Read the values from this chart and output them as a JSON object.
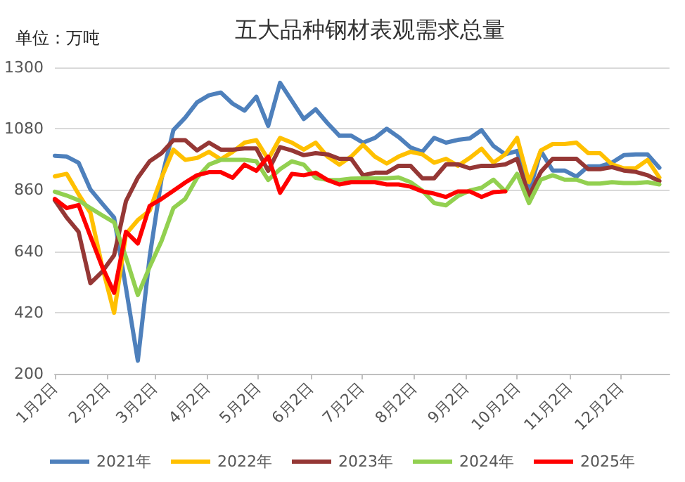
{
  "chart_data": {
    "type": "line",
    "title": "五大品种钢材表观需求总量",
    "annotations": [
      "单位：万吨"
    ],
    "x": [
      "--01-02",
      "--01-09",
      "--01-16",
      "--01-23",
      "--01-30",
      "--02-06",
      "--02-13",
      "--02-20",
      "--02-27",
      "--03-06",
      "--03-13",
      "--03-20",
      "--03-27",
      "--04-03",
      "--04-10",
      "--04-17",
      "--04-24",
      "--05-01",
      "--05-08",
      "--05-15",
      "--05-22",
      "--05-29",
      "--06-05",
      "--06-12",
      "--06-19",
      "--06-26",
      "--07-03",
      "--07-10",
      "--07-17",
      "--07-24",
      "--07-31",
      "--08-07",
      "--08-14",
      "--08-21",
      "--08-28",
      "--09-04",
      "--09-11",
      "--09-18",
      "--09-25",
      "--10-02",
      "--10-09",
      "--10-16",
      "--10-23",
      "--10-30",
      "--11-06",
      "--11-13",
      "--11-20",
      "--11-27",
      "--12-04",
      "--12-11",
      "--12-18",
      "--12-25"
    ],
    "xlim": [
      "--01-02",
      "--12-31"
    ],
    "xticks": [
      {
        "value": "--01-02",
        "label": "1月2日"
      },
      {
        "value": "--02-02",
        "label": "2月2日"
      },
      {
        "value": "--03-02",
        "label": "3月2日"
      },
      {
        "value": "--04-02",
        "label": "4月2日"
      },
      {
        "value": "--05-02",
        "label": "5月2日"
      },
      {
        "value": "--06-02",
        "label": "6月2日"
      },
      {
        "value": "--07-02",
        "label": "7月2日"
      },
      {
        "value": "--08-02",
        "label": "8月2日"
      },
      {
        "value": "--09-02",
        "label": "9月2日"
      },
      {
        "value": "--10-02",
        "label": "10月2日"
      },
      {
        "value": "--11-02",
        "label": "11月2日"
      },
      {
        "value": "--12-02",
        "label": "12月2日"
      }
    ],
    "ylim": [
      200,
      1300
    ],
    "yticks": [
      200,
      420,
      640,
      860,
      1080,
      1300
    ],
    "grid": "y",
    "legend": "bottom",
    "marker": "none",
    "line_style": "solid",
    "series": [
      {
        "name": "2021年",
        "color": "#4e80bc",
        "values": [
          983,
          980,
          958,
          862,
          811,
          761,
          508,
          247,
          620,
          900,
          1075,
          1120,
          1175,
          1200,
          1210,
          1170,
          1145,
          1195,
          1090,
          1245,
          1180,
          1115,
          1150,
          1100,
          1055,
          1055,
          1030,
          1047,
          1080,
          1050,
          1013,
          997,
          1047,
          1030,
          1040,
          1045,
          1075,
          1018,
          988,
          1000,
          850,
          1000,
          930,
          930,
          908,
          945,
          945,
          958,
          985,
          988,
          988,
          940
        ]
      },
      {
        "name": "2022年",
        "color": "#ffc000",
        "values": [
          909,
          918,
          845,
          778,
          584,
          419,
          702,
          752,
          786,
          904,
          1005,
          968,
          975,
          997,
          970,
          997,
          1030,
          1039,
          970,
          1047,
          1030,
          1005,
          1030,
          980,
          951,
          980,
          1022,
          980,
          955,
          980,
          997,
          988,
          958,
          972,
          947,
          975,
          1008,
          958,
          988,
          1047,
          888,
          1002,
          1025,
          1025,
          1030,
          992,
          992,
          952,
          938,
          938,
          968,
          905
        ]
      },
      {
        "name": "2023年",
        "color": "#953735",
        "values": [
          823,
          761,
          710,
          525,
          567,
          626,
          820,
          904,
          963,
          992,
          1039,
          1039,
          1002,
          1030,
          1005,
          1005,
          1009,
          1009,
          929,
          1014,
          1002,
          985,
          992,
          988,
          972,
          972,
          913,
          922,
          922,
          947,
          947,
          902,
          902,
          952,
          952,
          938,
          947,
          947,
          952,
          972,
          838,
          925,
          972,
          972,
          972,
          935,
          935,
          942,
          930,
          925,
          913,
          892
        ]
      },
      {
        "name": "2024年",
        "color": "#92d050",
        "values": [
          854,
          840,
          823,
          795,
          769,
          744,
          618,
          483,
          584,
          677,
          795,
          828,
          904,
          951,
          968,
          968,
          968,
          963,
          896,
          935,
          963,
          951,
          904,
          896,
          896,
          901,
          902,
          902,
          902,
          905,
          888,
          858,
          813,
          805,
          838,
          858,
          868,
          897,
          855,
          918,
          813,
          897,
          913,
          897,
          897,
          883,
          883,
          888,
          885,
          885,
          888,
          880
        ]
      },
      {
        "name": "2025年",
        "color": "#ff0000",
        "values": [
          828,
          795,
          806,
          694,
          584,
          491,
          710,
          668,
          803,
          828,
          857,
          887,
          913,
          924,
          924,
          904,
          951,
          929,
          980,
          850,
          918,
          913,
          922,
          896,
          880,
          888,
          888,
          888,
          880,
          880,
          872,
          855,
          847,
          835,
          855,
          855,
          835,
          852,
          855,
          null,
          null,
          null,
          null,
          null,
          null,
          null,
          null,
          null,
          null,
          null,
          null,
          null
        ]
      }
    ]
  }
}
